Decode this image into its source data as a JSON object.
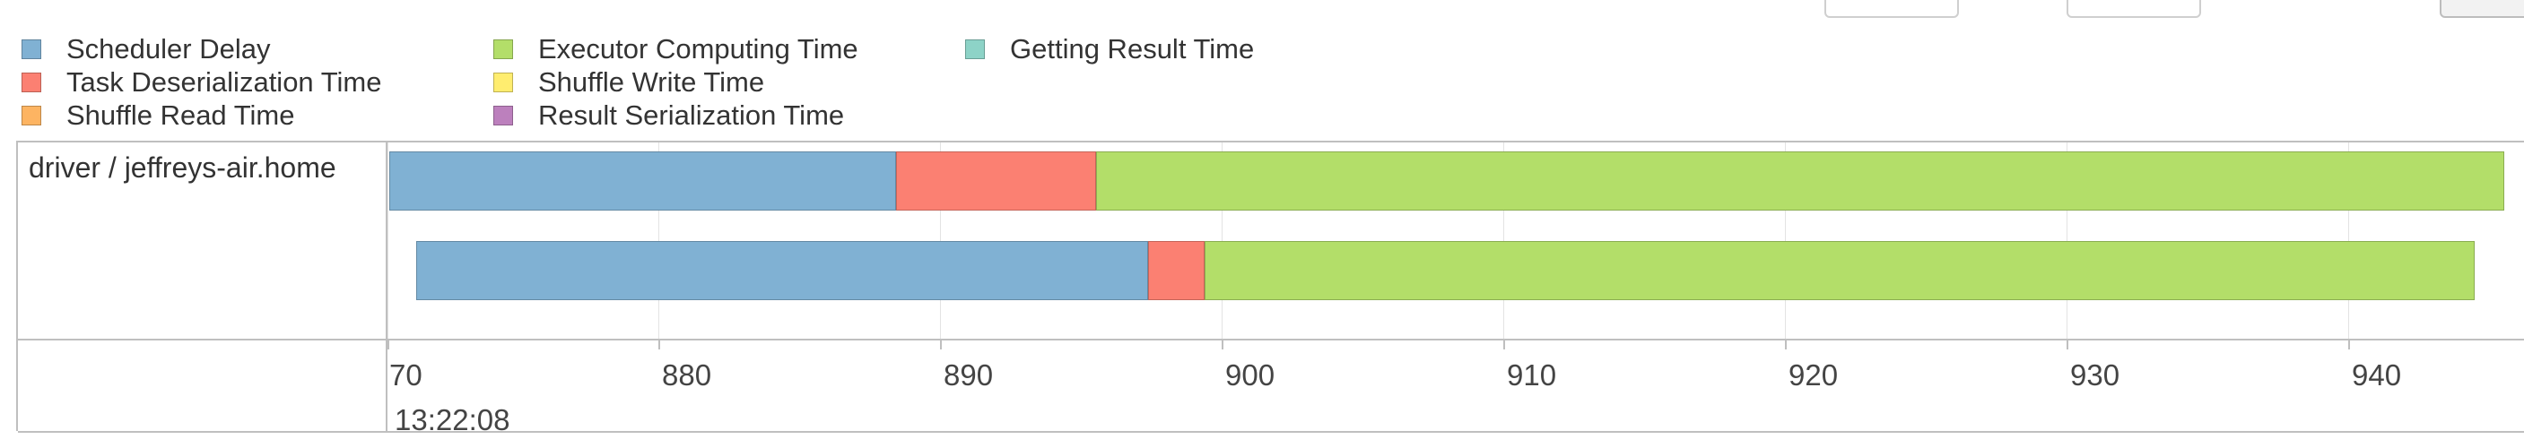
{
  "legend": {
    "items": [
      {
        "label": "Scheduler Delay",
        "color": "#80b1d3"
      },
      {
        "label": "Task Deserialization Time",
        "color": "#fb8072"
      },
      {
        "label": "Shuffle Read Time",
        "color": "#fdb462"
      },
      {
        "label": "Executor Computing Time",
        "color": "#b3de69"
      },
      {
        "label": "Shuffle Write Time",
        "color": "#ffed6f"
      },
      {
        "label": "Result Serialization Time",
        "color": "#bc80bd"
      },
      {
        "label": "Getting Result Time",
        "color": "#8dd3c7"
      }
    ]
  },
  "timeline": {
    "group_label": "driver / jeffreys-air.home",
    "axis": {
      "ticks": [
        "70",
        "880",
        "890",
        "900",
        "910",
        "920",
        "930",
        "940"
      ],
      "major_label": "13:22:08"
    },
    "tasks": [
      {
        "segments": [
          {
            "phase": "Scheduler Delay",
            "duration_ms": 18.0
          },
          {
            "phase": "Task Deserialization Time",
            "duration_ms": 7.1
          },
          {
            "phase": "Executor Computing Time",
            "duration_ms": 50.0
          }
        ]
      },
      {
        "segments": [
          {
            "phase": "Scheduler Delay",
            "duration_ms": 26.0
          },
          {
            "phase": "Task Deserialization Time",
            "duration_ms": 2.0
          },
          {
            "phase": "Executor Computing Time",
            "duration_ms": 45.1
          }
        ]
      }
    ]
  }
}
